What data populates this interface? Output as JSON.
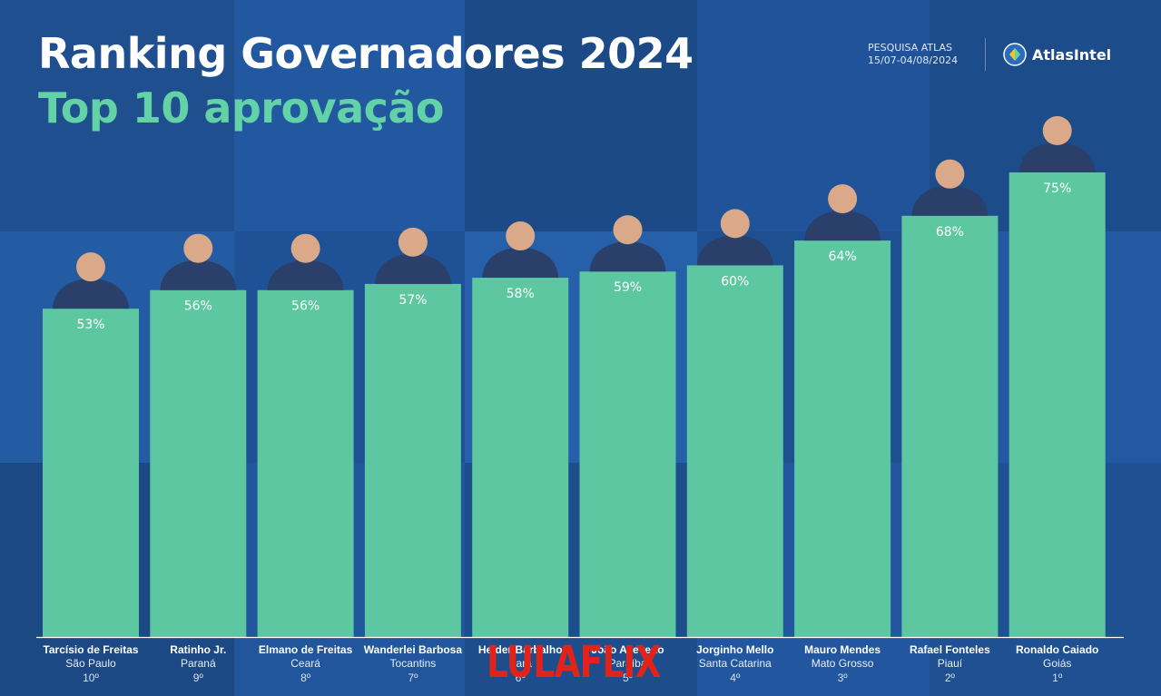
{
  "header": {
    "title": "Ranking Governadores 2024",
    "subtitle": "Top 10 aprovação",
    "source_line1": "PESQUISA ATLAS",
    "source_line2": "15/07-04/08/2024",
    "brand_name": "AtlasIntel",
    "brand_icon": "atlasintel-logo-icon"
  },
  "watermark": "LULAFLIX",
  "colors": {
    "bar": "#5cc7a1",
    "subtitle": "#63d2a6",
    "background": "#1e4e8c",
    "watermark": "#e2231a"
  },
  "chart_data": {
    "type": "bar",
    "title": "Ranking Governadores 2024",
    "subtitle": "Top 10 aprovação",
    "categories": [
      "Tarcísio de Freitas",
      "Ratinho Jr.",
      "Elmano de Freitas",
      "Wanderlei Barbosa",
      "Helder Barbalho",
      "João Azevedo",
      "Jorginho Mello",
      "Mauro Mendes",
      "Rafael Fonteles",
      "Ronaldo Caiado"
    ],
    "states": [
      "São Paulo",
      "Paraná",
      "Ceará",
      "Tocantins",
      "Pará",
      "Paraíba",
      "Santa Catarina",
      "Mato Grosso",
      "Piauí",
      "Goiás"
    ],
    "ranks": [
      "10º",
      "9º",
      "8º",
      "7º",
      "6º",
      "5º",
      "4º",
      "3º",
      "2º",
      "1º"
    ],
    "values": [
      53,
      56,
      56,
      57,
      58,
      59,
      60,
      64,
      68,
      75
    ],
    "value_labels": [
      "53%",
      "56%",
      "56%",
      "57%",
      "58%",
      "59%",
      "60%",
      "64%",
      "68%",
      "75%"
    ],
    "xlabel": "",
    "ylabel": "",
    "ylim": [
      0,
      100
    ],
    "grid": false,
    "legend": "none"
  }
}
